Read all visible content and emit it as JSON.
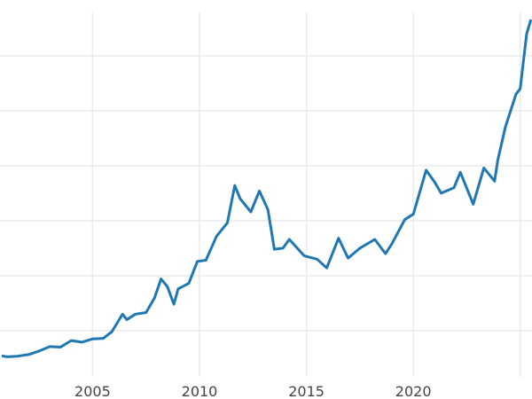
{
  "chart_data": {
    "type": "line",
    "title": "",
    "xlabel": "",
    "ylabel": "",
    "xlim": [
      2000.67,
      2025.55
    ],
    "ylim": [
      80,
      3507
    ],
    "grid": true,
    "x_gridlines": [
      2005,
      2010,
      2015,
      2020,
      2025
    ],
    "x_tick_labels": [
      "2005",
      "2010",
      "2015",
      "2020"
    ],
    "y_gridlines": [
      500,
      1000,
      1500,
      2000,
      2500,
      3000
    ],
    "y_tick_labels_shown": false,
    "legend": "none",
    "line_color": "#1f77b4",
    "series": [
      {
        "x": [
          2000.75,
          2001.0,
          2001.5,
          2002.0,
          2002.5,
          2003.0,
          2003.5,
          2004.0,
          2004.5,
          2005.0,
          2005.5,
          2005.9,
          2006.4,
          2006.6,
          2007.0,
          2007.5,
          2007.9,
          2008.2,
          2008.5,
          2008.8,
          2009.0,
          2009.5,
          2009.9,
          2010.3,
          2010.8,
          2011.3,
          2011.65,
          2011.9,
          2012.4,
          2012.8,
          2013.2,
          2013.5,
          2013.9,
          2014.2,
          2014.9,
          2015.5,
          2015.95,
          2016.5,
          2016.95,
          2017.5,
          2018.2,
          2018.7,
          2019.0,
          2019.6,
          2020.0,
          2020.6,
          2021.0,
          2021.3,
          2021.9,
          2022.2,
          2022.8,
          2023.3,
          2023.8,
          2023.95,
          2024.3,
          2024.8,
          2025.0,
          2025.3,
          2025.5
        ],
        "y": [
          270,
          262,
          268,
          282,
          315,
          355,
          350,
          410,
          395,
          425,
          430,
          490,
          650,
          600,
          650,
          665,
          800,
          970,
          900,
          740,
          880,
          930,
          1130,
          1140,
          1360,
          1480,
          1820,
          1700,
          1580,
          1770,
          1600,
          1240,
          1250,
          1330,
          1180,
          1150,
          1070,
          1340,
          1160,
          1250,
          1330,
          1200,
          1290,
          1510,
          1560,
          1960,
          1850,
          1750,
          1800,
          1940,
          1650,
          1980,
          1860,
          2050,
          2350,
          2650,
          2700,
          3200,
          3330
        ]
      }
    ]
  }
}
